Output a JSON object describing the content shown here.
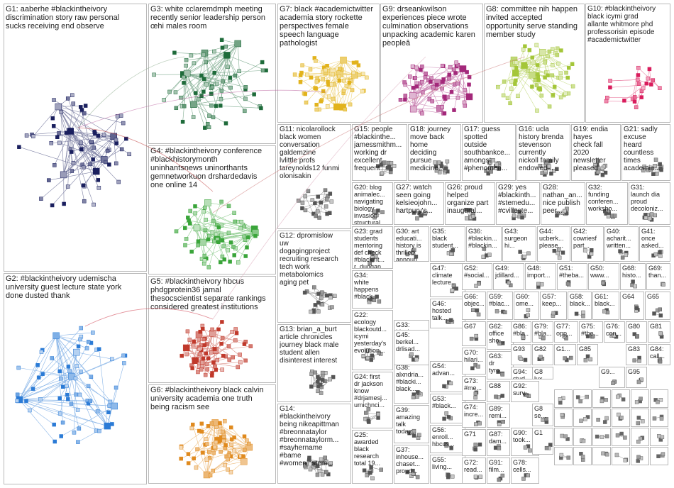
{
  "groups": [
    {
      "id": "G1",
      "label": "G1: aaberhe #blackintheivory\ndiscrimination story raw personal\nsucks receiving end observe",
      "color": "#1a1f5e"
    },
    {
      "id": "G2",
      "label": "G2: #blackintheivory udemischa\nuniversity guest lecture state york\ndone dusted thank",
      "color": "#2b7bd6"
    },
    {
      "id": "G3",
      "label": "G3: white cclaremdmph meeting\nrecently senior leadership person\nœhi males room",
      "color": "#1e6b3a"
    },
    {
      "id": "G4",
      "label": "G4: #blackintheivory conference\n#blackhistorymonth\nuninhantsnews uninorthants\ngemnetworkuon drshardedavis\none online 14",
      "color": "#3aa53a"
    },
    {
      "id": "G5",
      "label": "G5: #blackintheivory hbcus\nphdgprotein36 jamal\nthesocscientist separate rankings\nconsidered greatest institutions",
      "color": "#c0392b"
    },
    {
      "id": "G6",
      "label": "G6: #blackintheivory black calvin\nuniversity academia one truth\nbeing racism see",
      "color": "#e08a1e"
    },
    {
      "id": "G7",
      "label": "G7: black #academictwitter\nacademia story rockette\nperspectives female\nspeech language\npathologist",
      "color": "#e2b31c"
    },
    {
      "id": "G8",
      "label": "G8: committee nih happen\ninvited accepted\nopportunity serve standing\nmember study",
      "color": "#a4c639"
    },
    {
      "id": "G9",
      "label": "G9: drseankwilson\nexperiences piece wrote\nculmination observations\nunpacking academic karen\npeopleâ",
      "color": "#a3287a"
    },
    {
      "id": "G10",
      "label": "G10: #blackintheivory\nblack icymi grad\nallante whitmore phd\nprofessorisin episode\n#academictwitter",
      "color": "#d91c5c"
    },
    {
      "id": "G11",
      "label": "G11: nicolarollock\nblack women\nconversation\ngaldemzine\nlvlittle profs\ntareynolds12 funmi\nolonisakin",
      "color": "#555555"
    },
    {
      "id": "G12",
      "label": "G12: dpromislow\nuw\ndogagingproject\nrecruiting research\ntech work\nmetabolomics\naging pet",
      "color": "#555555"
    },
    {
      "id": "G13",
      "label": "G13: brian_a_burt\narticle chronicles\njourney black male\nstudent allen\ndisinterest interest",
      "color": "#555555"
    },
    {
      "id": "G14",
      "label": "G14:\n#blackintheivory\nbeing nikeapittman\n#breonnataylor\n#breonnataylorm...\n#sayhername\n#bame\n#womeninstem...",
      "color": "#555555"
    },
    {
      "id": "G15",
      "label": "G15: people\n#blackinthe...\njamessmithm...\nworking dr\nexcellent\nfrequent...",
      "color": "#555555"
    },
    {
      "id": "G16",
      "label": "G16: ucla\nhistory brenda\nstevenson\ncurrently\nnickoll family\nendowed...",
      "color": "#555555"
    },
    {
      "id": "G17",
      "label": "G17: guess\nspotted\noutside\nsouthbankce...\namongst\n#phenomen...",
      "color": "#555555"
    },
    {
      "id": "G18",
      "label": "G18: journey\nmove back\nhome\ndeciding\npursue\nmedicine...",
      "color": "#555555"
    },
    {
      "id": "G19",
      "label": "G19: endia\nhayes\ncheck fall\n2020\nnewsletter\npleased...",
      "color": "#555555"
    },
    {
      "id": "G20",
      "label": "G20: blog\nanimalec...\nnavigating\nbiology\ninvasion\nstructural...",
      "color": "#555555"
    },
    {
      "id": "G21",
      "label": "G21: sadly\nexcuse\nheard\ncountless\ntimes\nacademia...",
      "color": "#555555"
    },
    {
      "id": "G22",
      "label": "G22:\necology\nblackoutd...\nicymi\nyesterday's\nevolution...",
      "color": "#555555"
    },
    {
      "id": "G23",
      "label": "G23: grad\nstudents\nmentoring\ndef check\n#blackint...\nr_duggan...",
      "color": "#555555"
    },
    {
      "id": "G24",
      "label": "G24: first\ndr jackson\nknow\n#drjamesj...\numichnci...",
      "color": "#555555"
    },
    {
      "id": "G25",
      "label": "G25:\nawarded\nblack\nresearch\ntotal 19...",
      "color": "#555555"
    },
    {
      "id": "G26",
      "label": "G26: proud\nhelped\norganize part\ninaugural...",
      "color": "#555555"
    },
    {
      "id": "G27",
      "label": "G27: watch\nseen going\nkelsieojohn...\nhartpury's...",
      "color": "#555555"
    },
    {
      "id": "G28",
      "label": "G28:\nnathan_an...\nnice publish\npeer...",
      "color": "#555555"
    },
    {
      "id": "G29",
      "label": "G29: yes\n#blackinth...\n#stemedu...\n#cvilleste...",
      "color": "#555555"
    },
    {
      "id": "G30",
      "label": "G30: art\neducati...\nhistory is\nthrilled\nannoun...",
      "color": "#555555"
    },
    {
      "id": "G31",
      "label": "G31:\nlaunch dia\nproud\ndecoloniz...",
      "color": "#555555"
    },
    {
      "id": "G32",
      "label": "G32:\nfunding\nconferen...\nworksho...",
      "color": "#555555"
    },
    {
      "id": "G33",
      "label": "G33:\nblack...\nochsner\nwarnerlt...",
      "color": "#555555"
    },
    {
      "id": "G34",
      "label": "G34:\nwhite\nhappens\n#black...",
      "color": "#555555"
    },
    {
      "id": "G35",
      "label": "G35:\nblack\nstudent...",
      "color": "#555555"
    },
    {
      "id": "G36",
      "label": "G36:\n#blackin...\n#blackin...",
      "color": "#555555"
    },
    {
      "id": "G37",
      "label": "G37:\ninhouse...\nchaset...\nproud...",
      "color": "#555555"
    },
    {
      "id": "G38",
      "label": "G38:\nalxndria...\n#blacki...\nblack...",
      "color": "#555555"
    },
    {
      "id": "G39",
      "label": "G39:\namazing\ntalk\ntoday...",
      "color": "#555555"
    },
    {
      "id": "G40",
      "label": "G40:\nacharit...\nwritten...",
      "color": "#555555"
    },
    {
      "id": "G41",
      "label": "G41:\nonce\nasked...",
      "color": "#555555"
    },
    {
      "id": "G42",
      "label": "G42:\ncowriesf\npart...",
      "color": "#555555"
    },
    {
      "id": "G43",
      "label": "G43:\nsurgeon\nhi...",
      "color": "#555555"
    },
    {
      "id": "G44",
      "label": "G44:\nucberk...\nplease...",
      "color": "#555555"
    },
    {
      "id": "G45",
      "label": "G45:\nberkel...\ndrlisad...",
      "color": "#555555"
    },
    {
      "id": "G46",
      "label": "G46:\nhosted\ntalk...",
      "color": "#555555"
    },
    {
      "id": "G47",
      "label": "G47:\nclimate\nlecture...",
      "color": "#555555"
    },
    {
      "id": "G48",
      "label": "G48:\nimport...",
      "color": "#555555"
    },
    {
      "id": "G49",
      "label": "G49:\njdillard...",
      "color": "#555555"
    },
    {
      "id": "G50",
      "label": "G50:\nwww...",
      "color": "#555555"
    },
    {
      "id": "G51",
      "label": "G51:\n#theba...",
      "color": "#555555"
    },
    {
      "id": "G52",
      "label": "G52:\n#social...",
      "color": "#555555"
    },
    {
      "id": "G53",
      "label": "G53:\n#black...",
      "color": "#555555"
    },
    {
      "id": "G54",
      "label": "G54:\nadvan...",
      "color": "#555555"
    },
    {
      "id": "G55",
      "label": "G55:\nliving...",
      "color": "#555555"
    },
    {
      "id": "G56",
      "label": "G56:\nenroll...\nhbcus...",
      "color": "#555555"
    },
    {
      "id": "G57",
      "label": "G57:\nkeep...",
      "color": "#555555"
    },
    {
      "id": "G58",
      "label": "G58:\nblack...",
      "color": "#555555"
    },
    {
      "id": "G59",
      "label": "G59:\n#blac...",
      "color": "#555555"
    },
    {
      "id": "G60",
      "label": "G60:\nome...",
      "color": "#555555"
    },
    {
      "id": "G61",
      "label": "G61:\nblack...",
      "color": "#555555"
    },
    {
      "id": "G62",
      "label": "G62:\noffice\nsho...",
      "color": "#555555"
    },
    {
      "id": "G63",
      "label": "G63:\ndr\ntyro...",
      "color": "#555555"
    },
    {
      "id": "G64",
      "label": "G64",
      "color": "#555555"
    },
    {
      "id": "G65",
      "label": "G65",
      "color": "#555555"
    },
    {
      "id": "G66",
      "label": "G66:\nobjec...",
      "color": "#555555"
    },
    {
      "id": "G67",
      "label": "G67",
      "color": "#555555"
    },
    {
      "id": "G68",
      "label": "G68:\nhisto...",
      "color": "#555555"
    },
    {
      "id": "G69",
      "label": "G69:\nthan...",
      "color": "#555555"
    },
    {
      "id": "G70",
      "label": "G70:\nhilari...",
      "color": "#555555"
    },
    {
      "id": "G71",
      "label": "G71",
      "color": "#555555"
    },
    {
      "id": "G72",
      "label": "G72:\nread...",
      "color": "#555555"
    },
    {
      "id": "G73",
      "label": "G73:\n#me...",
      "color": "#555555"
    },
    {
      "id": "G74",
      "label": "G74:\nincre...",
      "color": "#555555"
    },
    {
      "id": "G75",
      "label": "G75:\n#the...",
      "color": "#555555"
    },
    {
      "id": "G76",
      "label": "G76:\ncon...",
      "color": "#555555"
    },
    {
      "id": "G77",
      "label": "G77:\nopp...",
      "color": "#555555"
    },
    {
      "id": "G78",
      "label": "G78:\ncells...",
      "color": "#555555"
    },
    {
      "id": "G79",
      "label": "G79:\n#bla...",
      "color": "#555555"
    },
    {
      "id": "G80",
      "label": "G80",
      "color": "#555555"
    },
    {
      "id": "G81",
      "label": "G81",
      "color": "#555555"
    },
    {
      "id": "G82",
      "label": "G82",
      "color": "#555555"
    },
    {
      "id": "G83",
      "label": "G83",
      "color": "#555555"
    },
    {
      "id": "G84",
      "label": "G84:\ncall...",
      "color": "#555555"
    },
    {
      "id": "G85",
      "label": "G85",
      "color": "#555555"
    },
    {
      "id": "G86",
      "label": "G86:\n#bla...",
      "color": "#555555"
    },
    {
      "id": "G87",
      "label": "G87:\ndam...",
      "color": "#555555"
    },
    {
      "id": "G88",
      "label": "G88",
      "color": "#555555"
    },
    {
      "id": "G89",
      "label": "G89:\nremi...",
      "color": "#555555"
    },
    {
      "id": "G90",
      "label": "G90:\ntook...",
      "color": "#555555"
    },
    {
      "id": "G91",
      "label": "G91:\nfilm...",
      "color": "#555555"
    },
    {
      "id": "G92",
      "label": "G92:\nsurv...",
      "color": "#555555"
    },
    {
      "id": "G93",
      "label": "G93",
      "color": "#555555"
    },
    {
      "id": "G94",
      "label": "G94:\nstud...",
      "color": "#555555"
    },
    {
      "id": "G95",
      "label": "G95",
      "color": "#555555"
    },
    {
      "id": "G1x",
      "label": "G1...",
      "color": "#555555"
    },
    {
      "id": "G8x",
      "label": "G8\nlux...",
      "color": "#555555"
    },
    {
      "id": "G8y",
      "label": "G8\nse...",
      "color": "#555555"
    },
    {
      "id": "G9x",
      "label": "G9...",
      "color": "#555555"
    },
    {
      "id": "G1y",
      "label": "G1",
      "color": "#555555"
    }
  ]
}
